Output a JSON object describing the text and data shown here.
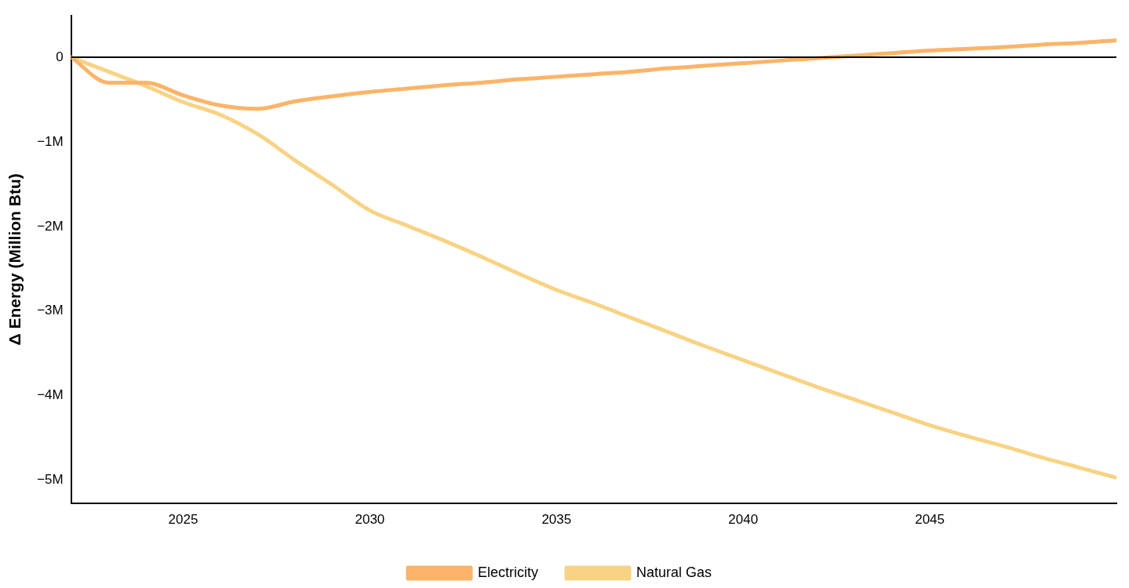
{
  "chart_data": {
    "type": "line",
    "ylabel": "Δ Energy (Million Btu)",
    "x": [
      2022,
      2023,
      2024,
      2025,
      2026,
      2027,
      2028,
      2029,
      2030,
      2031,
      2032,
      2033,
      2034,
      2035,
      2036,
      2037,
      2038,
      2039,
      2040,
      2041,
      2042,
      2043,
      2044,
      2045,
      2046,
      2047,
      2048,
      2049,
      2050
    ],
    "series": [
      {
        "name": "Electricity",
        "color": "#fbb468",
        "values": [
          0,
          -300000,
          -300000,
          -450000,
          -570000,
          -610000,
          -520000,
          -460000,
          -410000,
          -370000,
          -330000,
          -300000,
          -260000,
          -230000,
          -200000,
          -170000,
          -130000,
          -100000,
          -70000,
          -40000,
          -10000,
          20000,
          50000,
          80000,
          100000,
          120000,
          150000,
          170000,
          200000
        ]
      },
      {
        "name": "Natural Gas",
        "color": "#f8d384",
        "values": [
          0,
          -170000,
          -340000,
          -530000,
          -680000,
          -910000,
          -1220000,
          -1510000,
          -1810000,
          -1990000,
          -2170000,
          -2360000,
          -2560000,
          -2750000,
          -2910000,
          -3080000,
          -3250000,
          -3420000,
          -3580000,
          -3740000,
          -3900000,
          -4050000,
          -4200000,
          -4350000,
          -4480000,
          -4600000,
          -4730000,
          -4850000,
          -4970000
        ]
      }
    ],
    "xlim": [
      2022,
      2050
    ],
    "xticks": [
      2025,
      2030,
      2035,
      2040,
      2045
    ],
    "ylim": [
      -5270000,
      490000
    ],
    "yticks": [
      {
        "value": 0,
        "label": "0"
      },
      {
        "value": -1000000,
        "label": "−1M"
      },
      {
        "value": -2000000,
        "label": "−2M"
      },
      {
        "value": -3000000,
        "label": "−3M"
      },
      {
        "value": -4000000,
        "label": "−4M"
      },
      {
        "value": -5000000,
        "label": "−5M"
      }
    ],
    "ref_lines": [
      {
        "axis": "y",
        "value": 0,
        "color": "#000000"
      }
    ],
    "grid": false,
    "legend": "bottom",
    "marker": "none",
    "line_style": "solid"
  }
}
